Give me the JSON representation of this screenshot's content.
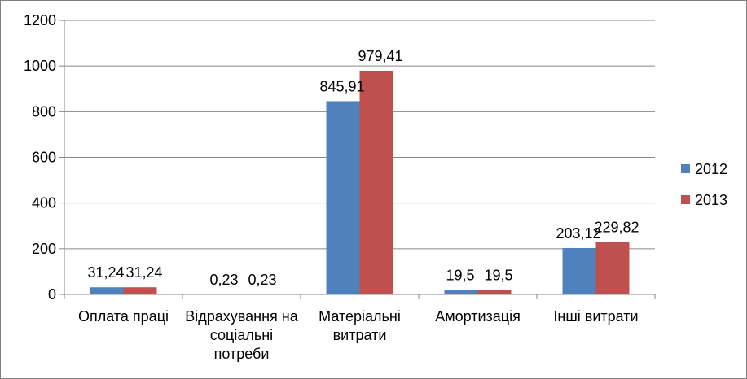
{
  "chart_data": {
    "type": "bar",
    "categories": [
      [
        "Оплата праці"
      ],
      [
        "Відрахування на",
        "соціальні",
        "потреби"
      ],
      [
        "Матеріальні",
        "витрати"
      ],
      [
        "Амортизація"
      ],
      [
        "Інші витрати"
      ]
    ],
    "series": [
      {
        "name": "2012",
        "color": "#4F81BD",
        "values": [
          31.24,
          0.23,
          845.91,
          19.5,
          203.12
        ],
        "labels": [
          "31,24",
          "0,23",
          "845,91",
          "19,5",
          "203,12"
        ]
      },
      {
        "name": "2013",
        "color": "#C0504D",
        "values": [
          31.24,
          0.23,
          979.41,
          19.5,
          229.82
        ],
        "labels": [
          "31,24",
          "0,23",
          "979,41",
          "19,5",
          "229,82"
        ]
      }
    ],
    "ylim": [
      0,
      1200
    ],
    "yticks": [
      0,
      200,
      400,
      600,
      800,
      1000,
      1200
    ],
    "grid": true,
    "legend_position": "right"
  }
}
